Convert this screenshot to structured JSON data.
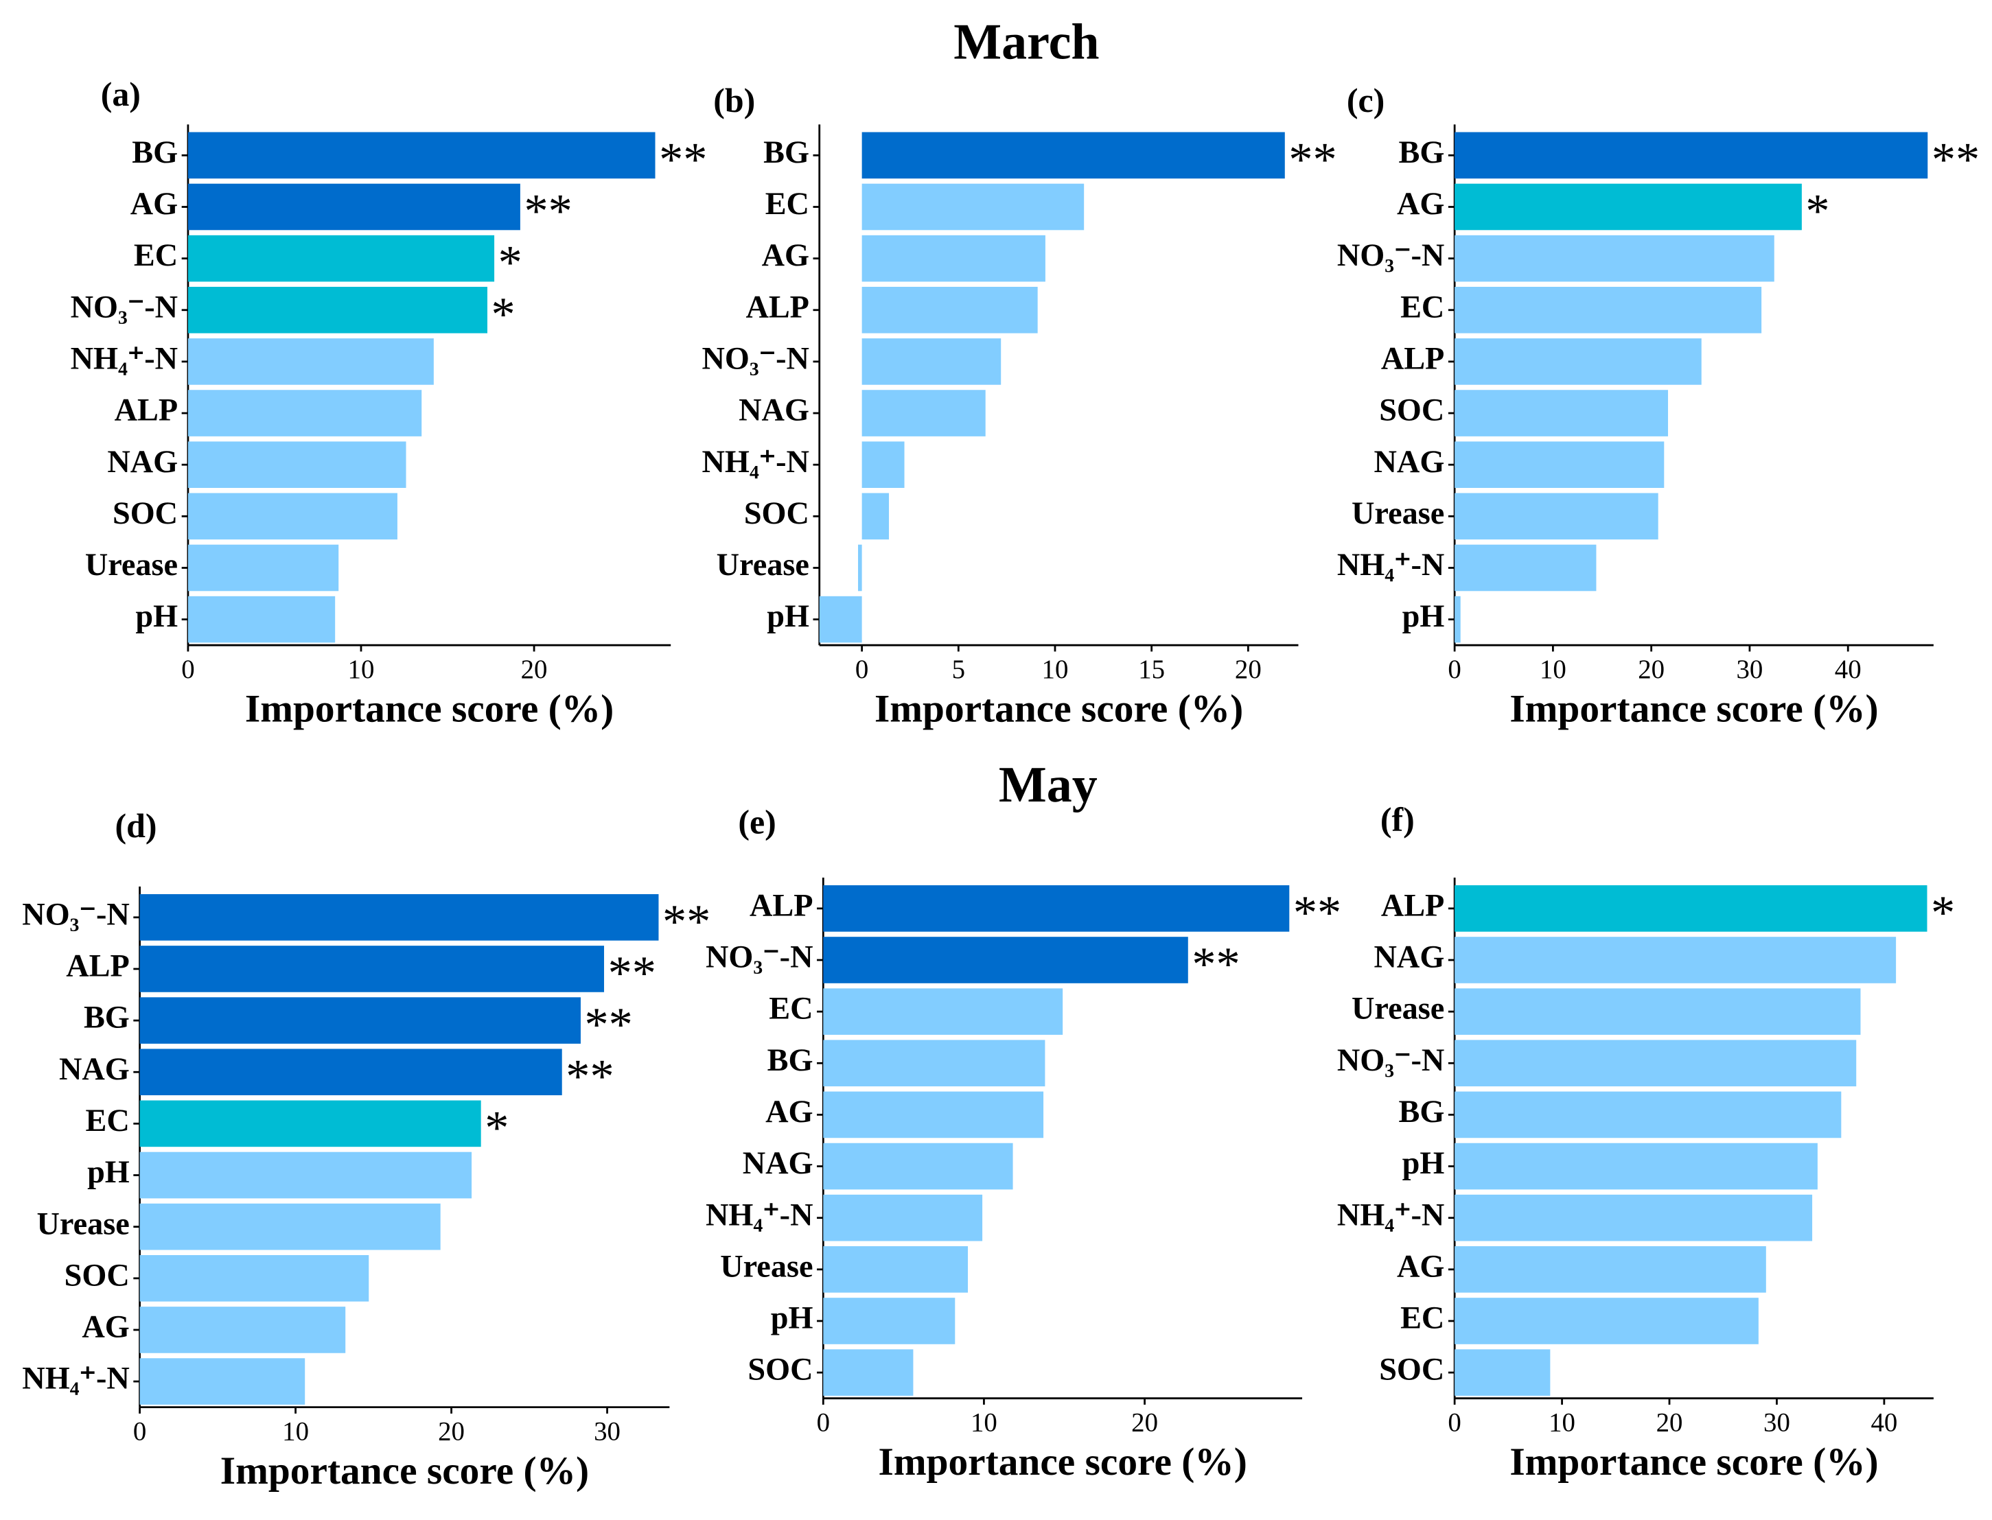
{
  "headings": [
    "March",
    "May"
  ],
  "chart_data": [
    {
      "type": "bar",
      "orientation": "horizontal",
      "panel_label": "(a)",
      "x_label": "Importance score (%)",
      "categories": [
        "BG",
        "AG",
        "EC",
        "NO₃⁻-N",
        "NH₄⁺-N",
        "ALP",
        "NAG",
        "SOC",
        "Urease",
        "pH"
      ],
      "values": [
        27.0,
        19.2,
        17.7,
        17.3,
        14.2,
        13.5,
        12.6,
        12.1,
        8.7,
        8.5
      ],
      "colors": [
        "#006ccc",
        "#006ccc",
        "#00bcd4",
        "#00bcd4",
        "#82cdff",
        "#82cdff",
        "#82cdff",
        "#82cdff",
        "#82cdff",
        "#82cdff"
      ],
      "significance": [
        "**",
        "**",
        "*",
        "*",
        null,
        null,
        null,
        null,
        null,
        null
      ],
      "xlim": [
        0,
        27.9
      ],
      "xticks": [
        0,
        10,
        20
      ]
    },
    {
      "type": "bar",
      "orientation": "horizontal",
      "panel_label": "(b)",
      "x_label": "Importance score (%)",
      "categories": [
        "BG",
        "EC",
        "AG",
        "ALP",
        "NO₃⁻-N",
        "NAG",
        "NH₄⁺-N",
        "SOC",
        "Urease",
        "pH"
      ],
      "values": [
        21.9,
        11.5,
        9.5,
        9.1,
        7.2,
        6.4,
        2.2,
        1.4,
        -0.2,
        -2.2
      ],
      "colors": [
        "#006ccc",
        "#82cdff",
        "#82cdff",
        "#82cdff",
        "#82cdff",
        "#82cdff",
        "#82cdff",
        "#82cdff",
        "#82cdff",
        "#82cdff"
      ],
      "significance": [
        "**",
        null,
        null,
        null,
        null,
        null,
        null,
        null,
        null,
        null
      ],
      "xlim": [
        -2.2,
        22.6
      ],
      "xticks": [
        0,
        5,
        10,
        15,
        20
      ]
    },
    {
      "type": "bar",
      "orientation": "horizontal",
      "panel_label": "(c)",
      "x_label": "Importance score (%)",
      "categories": [
        "BG",
        "AG",
        "NO₃⁻-N",
        "EC",
        "ALP",
        "SOC",
        "NAG",
        "Urease",
        "NH₄⁺-N",
        "pH"
      ],
      "values": [
        48.1,
        35.3,
        32.5,
        31.2,
        25.1,
        21.7,
        21.3,
        20.7,
        14.4,
        0.6
      ],
      "colors": [
        "#006ccc",
        "#00bcd4",
        "#82cdff",
        "#82cdff",
        "#82cdff",
        "#82cdff",
        "#82cdff",
        "#82cdff",
        "#82cdff",
        "#82cdff"
      ],
      "significance": [
        "**",
        "*",
        null,
        null,
        null,
        null,
        null,
        null,
        null,
        null
      ],
      "xlim": [
        0,
        48.7
      ],
      "xticks": [
        0,
        10,
        20,
        30,
        40
      ]
    },
    {
      "type": "bar",
      "orientation": "horizontal",
      "panel_label": "(d)",
      "x_label": "Importance score (%)",
      "categories": [
        "NO₃⁻-N",
        "ALP",
        "BG",
        "NAG",
        "EC",
        "pH",
        "Urease",
        "SOC",
        "AG",
        "NH₄⁺-N"
      ],
      "values": [
        33.3,
        29.8,
        28.3,
        27.1,
        21.9,
        21.3,
        19.3,
        14.7,
        13.2,
        10.6
      ],
      "colors": [
        "#006ccc",
        "#006ccc",
        "#006ccc",
        "#006ccc",
        "#00bcd4",
        "#82cdff",
        "#82cdff",
        "#82cdff",
        "#82cdff",
        "#82cdff"
      ],
      "significance": [
        "**",
        "**",
        "**",
        "**",
        "*",
        null,
        null,
        null,
        null,
        null
      ],
      "xlim": [
        0,
        34
      ],
      "xticks": [
        0,
        10,
        20,
        30
      ]
    },
    {
      "type": "bar",
      "orientation": "horizontal",
      "panel_label": "(e)",
      "x_label": "Importance score (%)",
      "categories": [
        "ALP",
        "NO₃⁻-N",
        "EC",
        "BG",
        "AG",
        "NAG",
        "NH₄⁺-N",
        "Urease",
        "pH",
        "SOC"
      ],
      "values": [
        29.0,
        22.7,
        14.9,
        13.8,
        13.7,
        11.8,
        9.9,
        9.0,
        8.2,
        5.6
      ],
      "colors": [
        "#006ccc",
        "#006ccc",
        "#82cdff",
        "#82cdff",
        "#82cdff",
        "#82cdff",
        "#82cdff",
        "#82cdff",
        "#82cdff",
        "#82cdff"
      ],
      "significance": [
        "**",
        "**",
        null,
        null,
        null,
        null,
        null,
        null,
        null,
        null
      ],
      "xlim": [
        0,
        29.8
      ],
      "xticks": [
        0,
        10,
        20
      ]
    },
    {
      "type": "bar",
      "orientation": "horizontal",
      "panel_label": "(f)",
      "x_label": "Importance score (%)",
      "categories": [
        "ALP",
        "NAG",
        "Urease",
        "NO₃⁻-N",
        "BG",
        "pH",
        "NH₄⁺-N",
        "AG",
        "EC",
        "SOC"
      ],
      "values": [
        44.0,
        41.1,
        37.8,
        37.4,
        36.0,
        33.8,
        33.3,
        29.0,
        28.3,
        8.9
      ],
      "colors": [
        "#00bcd4",
        "#82cdff",
        "#82cdff",
        "#82cdff",
        "#82cdff",
        "#82cdff",
        "#82cdff",
        "#82cdff",
        "#82cdff",
        "#82cdff"
      ],
      "significance": [
        "*",
        null,
        null,
        null,
        null,
        null,
        null,
        null,
        null,
        null
      ],
      "xlim": [
        0,
        44.6
      ],
      "xticks": [
        0,
        10,
        20,
        30,
        40
      ]
    }
  ]
}
